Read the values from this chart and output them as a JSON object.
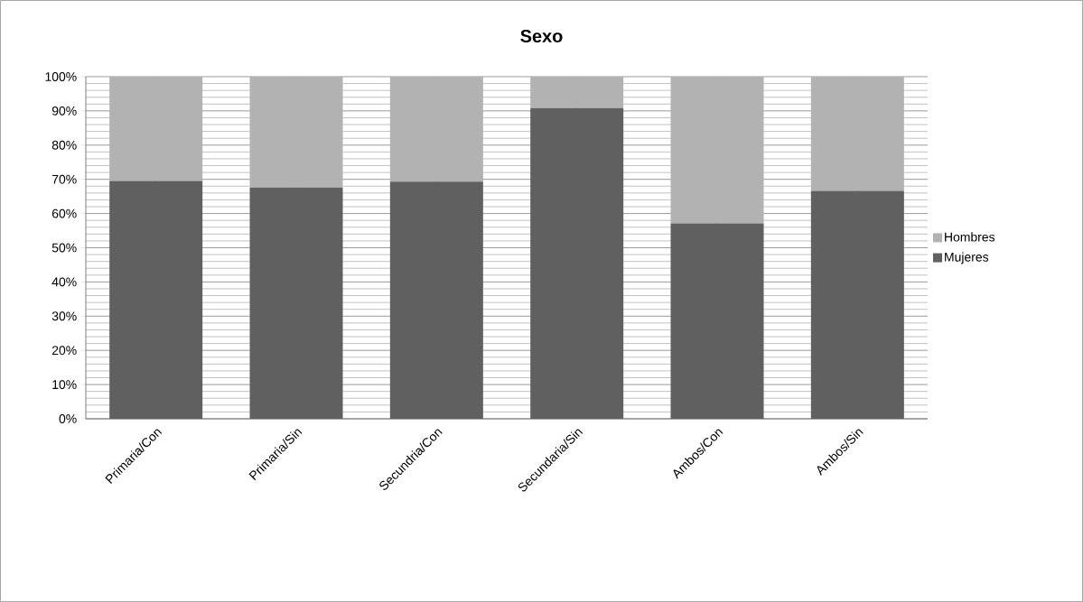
{
  "chart_data": {
    "type": "bar",
    "title": "Sexo",
    "stacked": true,
    "categories": [
      "Primaria/Con",
      "Primaria/Sin",
      "Secundria/Con",
      "Secundaria/Sin",
      "Ambos/Con",
      "Ambos/Sin"
    ],
    "series": [
      {
        "name": "Mujeres",
        "color": "#606060",
        "values": [
          69.5,
          67.6,
          69.3,
          90.8,
          57.1,
          66.6
        ]
      },
      {
        "name": "Hombres",
        "color": "#b2b2b2",
        "values": [
          30.5,
          32.4,
          30.7,
          9.2,
          42.9,
          33.4
        ]
      }
    ],
    "ylim": [
      0,
      100
    ],
    "yticks": [
      {
        "value": 0,
        "label": "0%"
      },
      {
        "value": 10,
        "label": "10%"
      },
      {
        "value": 20,
        "label": "20%"
      },
      {
        "value": 30,
        "label": "30%"
      },
      {
        "value": 40,
        "label": "40%"
      },
      {
        "value": 50,
        "label": "50%"
      },
      {
        "value": 60,
        "label": "60%"
      },
      {
        "value": 70,
        "label": "70%"
      },
      {
        "value": 80,
        "label": "80%"
      },
      {
        "value": 90,
        "label": "90%"
      },
      {
        "value": 100,
        "label": "100%"
      }
    ],
    "grid": true,
    "legend": "right"
  }
}
